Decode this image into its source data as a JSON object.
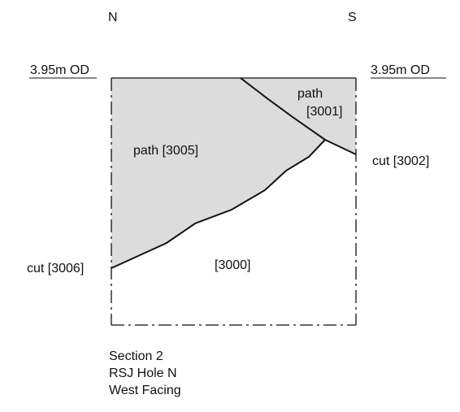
{
  "orientation": {
    "left": "N",
    "right": "S"
  },
  "datum": {
    "left": "3.95m OD",
    "right": "3.95m OD"
  },
  "layers": {
    "path_3005": "path [3005]",
    "path_3001_line1": "path",
    "path_3001_line2": "[3001]",
    "natural_3000": "[3000]"
  },
  "cuts": {
    "cut_3002": "cut [3002]",
    "cut_3006": "cut [3006]"
  },
  "caption": {
    "line1": "Section 2",
    "line2": "RSJ Hole N",
    "line3": "West Facing"
  },
  "colors": {
    "fill": "#dcdcdc",
    "line": "#111111"
  }
}
